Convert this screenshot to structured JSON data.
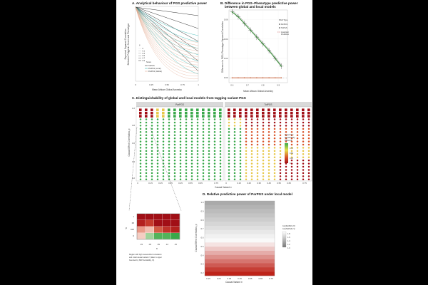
{
  "panelA": {
    "title": "A. Analytical behaviour of PGS predictive power",
    "ylabel1": "Expected Squared Correlation",
    "ylabel2": "Between Polygenic Score and Phenotype",
    "xlabel": "Mean African Global Ancestry",
    "xticks": [
      "0",
      "0.25",
      "0.50",
      "0.75",
      "1"
    ],
    "legend_rho_title": "ρ",
    "legend_rho": [
      "0",
      "0.1",
      "0.3",
      "0.5",
      "0.7",
      "0.9"
    ],
    "legend_score_title": "Score",
    "legend_score": [
      "TotPGS",
      "ParPGS (Local)",
      "ParPGS (Global)"
    ],
    "colors": {
      "black": "#333333",
      "teal": "#2fb3ae",
      "orange": "#e3a98f"
    }
  },
  "panelB": {
    "title": "B. Difference in PGS–Phenotype predictive power",
    "title2": "between global and local models",
    "ylabel": "Difference in PGS–Phenotype Squared Correlation",
    "xlabel": "Mean African Global Ancestry",
    "xticks": [
      "0.6",
      "0.7",
      "0.8",
      "0.9"
    ],
    "yticks": [
      "0.00",
      "0.02",
      "0.04",
      "0.06"
    ],
    "legend_title": "PGS Type",
    "legend": [
      "ParPGS",
      "TotPGS",
      "Analytical",
      "Prediction"
    ],
    "chart_data": {
      "type": "line",
      "xlim": [
        0.58,
        0.96
      ],
      "ylim": [
        -0.005,
        0.07
      ],
      "series": [
        {
          "name": "ParPGS",
          "x": [
            0.6,
            0.64,
            0.68,
            0.72,
            0.76,
            0.8,
            0.84,
            0.88,
            0.92
          ],
          "y": [
            0.068,
            0.063,
            0.056,
            0.049,
            0.042,
            0.035,
            0.028,
            0.02,
            0.012
          ]
        },
        {
          "name": "TotPGS",
          "x": [
            0.6,
            0.64,
            0.68,
            0.72,
            0.76,
            0.8,
            0.84,
            0.88,
            0.92
          ],
          "y": [
            0.0,
            0.0,
            0.0,
            0.0,
            0.0,
            0.0,
            0.0,
            0.0,
            0.0
          ]
        }
      ]
    }
  },
  "panelC": {
    "title": "C. Distinguishability of global and local models from tagging variant PGS",
    "strips": [
      "ParPGS",
      "TotPGS"
    ],
    "ylabel": "Causal Effect Correlation, ρ",
    "xlabel": "Causal Variant r²",
    "yticks": [
      "1.0",
      "0.8",
      "0.6",
      "0.4",
      "0.2"
    ],
    "xticks": [
      "0",
      "0.15",
      "0.25",
      "0.35",
      "0.45",
      "0.55",
      "0.65",
      "0.75"
    ],
    "legend_title": [
      "Proportion",
      "Significantly",
      "Different"
    ],
    "legend_ticks": [
      "0.75",
      "0.50",
      "0.25",
      "0"
    ]
  },
  "inset": {
    "yticks": [
      "1",
      ".95",
      ".925",
      ".9"
    ],
    "xticks": [
      ".03",
      ".06",
      ".09",
      ".12",
      ".15"
    ],
    "ylabel": "ρ",
    "xlabel": "r²",
    "caption": [
      "Region with high causal effect correlation",
      "and small causal variant r² (latter is upper",
      "bounded by SNP-heritability, h²)"
    ]
  },
  "panelD": {
    "title": "D. Relative predictive power of ParPGS under local model",
    "ylabel": "Causal Effect Correlation, ρ",
    "xlabel": "Causal Variant r²",
    "xticks": [
      "0.15",
      "0.25",
      "0.35",
      "0.45",
      "0.55",
      "0.65",
      "0.75"
    ],
    "yticks": [
      "1.0",
      "0.9",
      "0.8",
      "0.7",
      "0.6",
      "0.5",
      "0.4",
      "0.3",
      "0.2"
    ],
    "legend_title": [
      "Cor(ParPGS,Y)²",
      "Cor(TotPGS,Y)²"
    ],
    "legend_ticks": [
      "1.8",
      "1.6",
      "1.4",
      "1.2",
      "1.0"
    ]
  }
}
